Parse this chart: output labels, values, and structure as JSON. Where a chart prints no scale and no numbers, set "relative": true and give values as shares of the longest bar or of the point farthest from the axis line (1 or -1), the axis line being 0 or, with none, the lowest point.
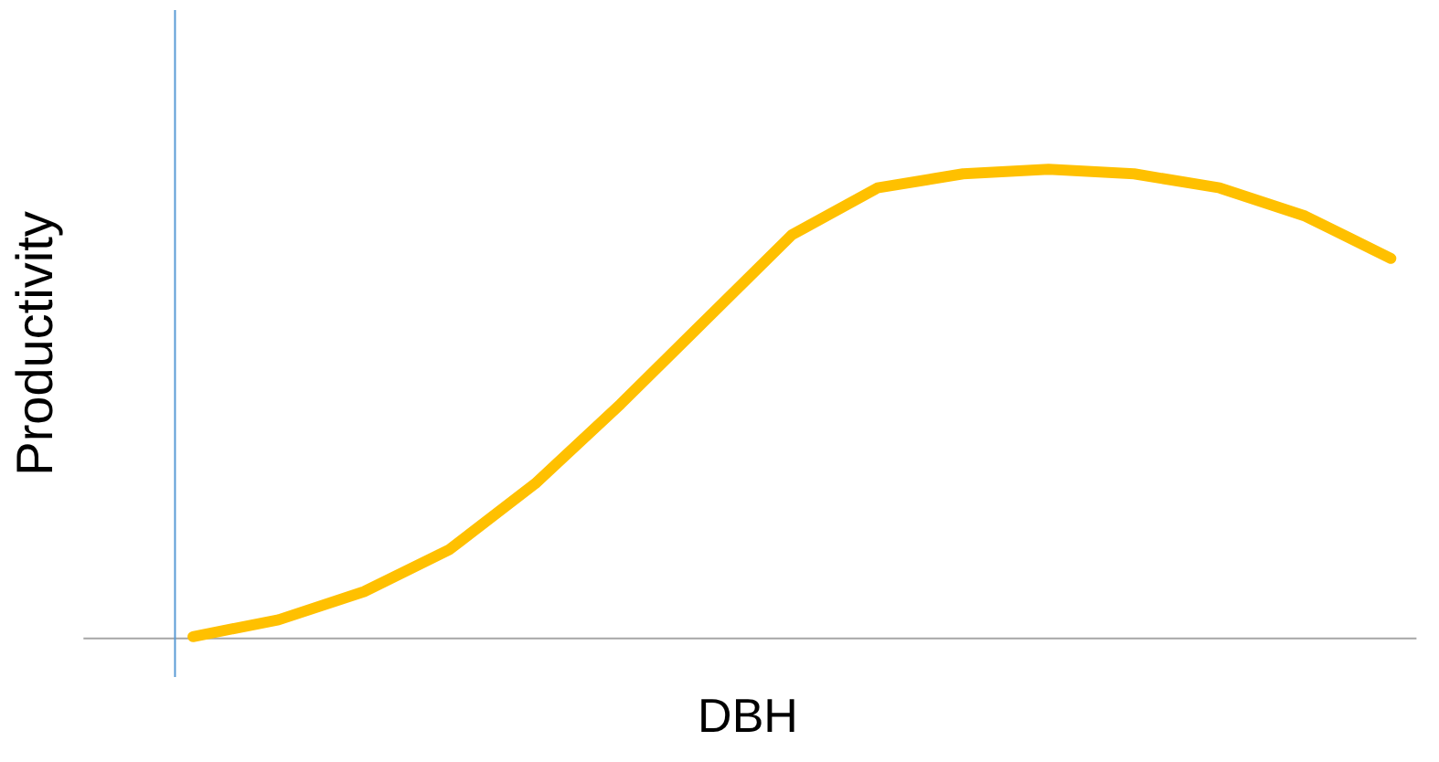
{
  "chart_data": {
    "type": "line",
    "relative": true,
    "xlabel": "DBH",
    "ylabel": "Productivity",
    "grid": false,
    "categories": [
      null,
      null,
      null,
      null,
      null,
      null,
      null,
      null,
      null,
      null,
      null,
      null,
      null,
      null,
      null
    ],
    "series": [
      {
        "color": "#ffc000",
        "values": [
          0.004,
          0.04,
          0.1,
          0.19,
          0.33,
          0.5,
          0.68,
          0.86,
          0.96,
          0.99,
          1.0,
          0.99,
          0.96,
          0.9,
          0.81
        ]
      }
    ]
  }
}
